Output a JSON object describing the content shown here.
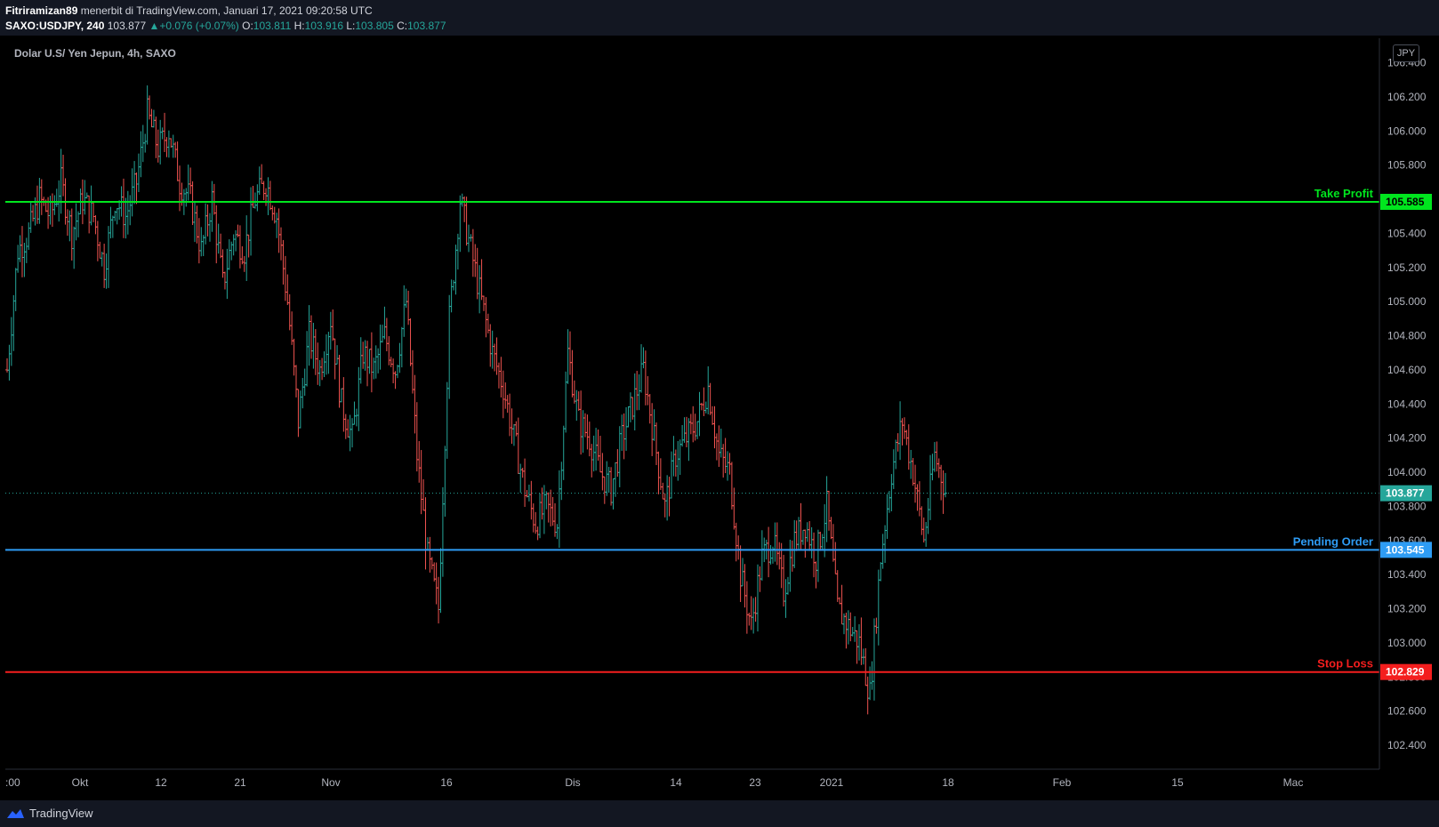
{
  "header": {
    "author": "Fitriramizan89",
    "published": "menerbit di TradingView.com, Januari 17, 2021 09:20:58 UTC",
    "symbol": "SAXO:USDJPY, 240",
    "last": "103.877",
    "change_arrow": "▲",
    "change": "+0.076 (+0.07%)",
    "o_label": "O:",
    "o": "103.811",
    "h_label": "H:",
    "h": "103.916",
    "l_label": "L:",
    "l": "103.805",
    "c_label": "C:",
    "c": "103.877"
  },
  "pane_title": "Dolar U.S/ Yen Jepun, 4h, SAXO",
  "currency_badge": "JPY",
  "footer": {
    "brand": "TradingView"
  },
  "colors": {
    "up": "#26a69a",
    "down": "#ef5350",
    "take_profit": "#00e61e",
    "pending": "#2e9cf4",
    "stop_loss": "#f41e1e",
    "current_price": "#26a69a"
  },
  "chart_data": {
    "type": "candlestick",
    "title": "Dolar U.S/ Yen Jepun, 4h, SAXO",
    "ylim": [
      102.2,
      106.5
    ],
    "yticks": [
      "106.400",
      "106.200",
      "106.000",
      "105.800",
      "105.600",
      "105.400",
      "105.200",
      "105.000",
      "104.800",
      "104.600",
      "104.400",
      "104.200",
      "104.000",
      "103.800",
      "103.600",
      "103.400",
      "103.200",
      "103.000",
      "102.800",
      "102.600",
      "102.400"
    ],
    "xticks": [
      ":00",
      "Okt",
      "12",
      "21",
      "Nov",
      "16",
      "Dis",
      "14",
      "23",
      "2021",
      "18",
      "Feb",
      "15",
      "Mac"
    ],
    "current_price": "103.877",
    "levels": [
      {
        "name": "Take Profit",
        "value": "105.585",
        "color": "#00e61e"
      },
      {
        "name": "Pending Order",
        "value": "103.545",
        "color": "#2e9cf4"
      },
      {
        "name": "Stop Loss",
        "value": "102.829",
        "color": "#f41e1e"
      }
    ],
    "path": [
      104.6,
      105.3,
      105.4,
      105.6,
      105.5,
      105.7,
      105.4,
      105.6,
      105.5,
      105.2,
      105.6,
      105.5,
      105.7,
      106.1,
      105.9,
      106.0,
      105.7,
      105.6,
      105.3,
      105.6,
      105.1,
      105.4,
      105.3,
      105.6,
      105.7,
      105.5,
      105.0,
      104.3,
      104.8,
      104.6,
      104.9,
      104.4,
      104.2,
      104.7,
      104.6,
      104.8,
      104.6,
      105.0,
      104.1,
      103.5,
      103.2,
      104.9,
      105.6,
      105.3,
      105.0,
      104.7,
      104.5,
      104.2,
      103.9,
      103.7,
      103.8,
      103.7,
      104.7,
      104.3,
      104.2,
      104.0,
      103.9,
      104.2,
      104.4,
      104.6,
      104.2,
      103.8,
      104.1,
      104.2,
      104.3,
      104.5,
      104.1,
      104.0,
      103.4,
      103.1,
      103.5,
      103.6,
      103.3,
      103.6,
      103.7,
      103.5,
      103.8,
      103.2,
      103.1,
      103.0,
      102.7,
      103.5,
      104.0,
      104.3,
      104.0,
      103.6,
      104.1,
      103.9
    ],
    "fill_range": 0.0
  }
}
